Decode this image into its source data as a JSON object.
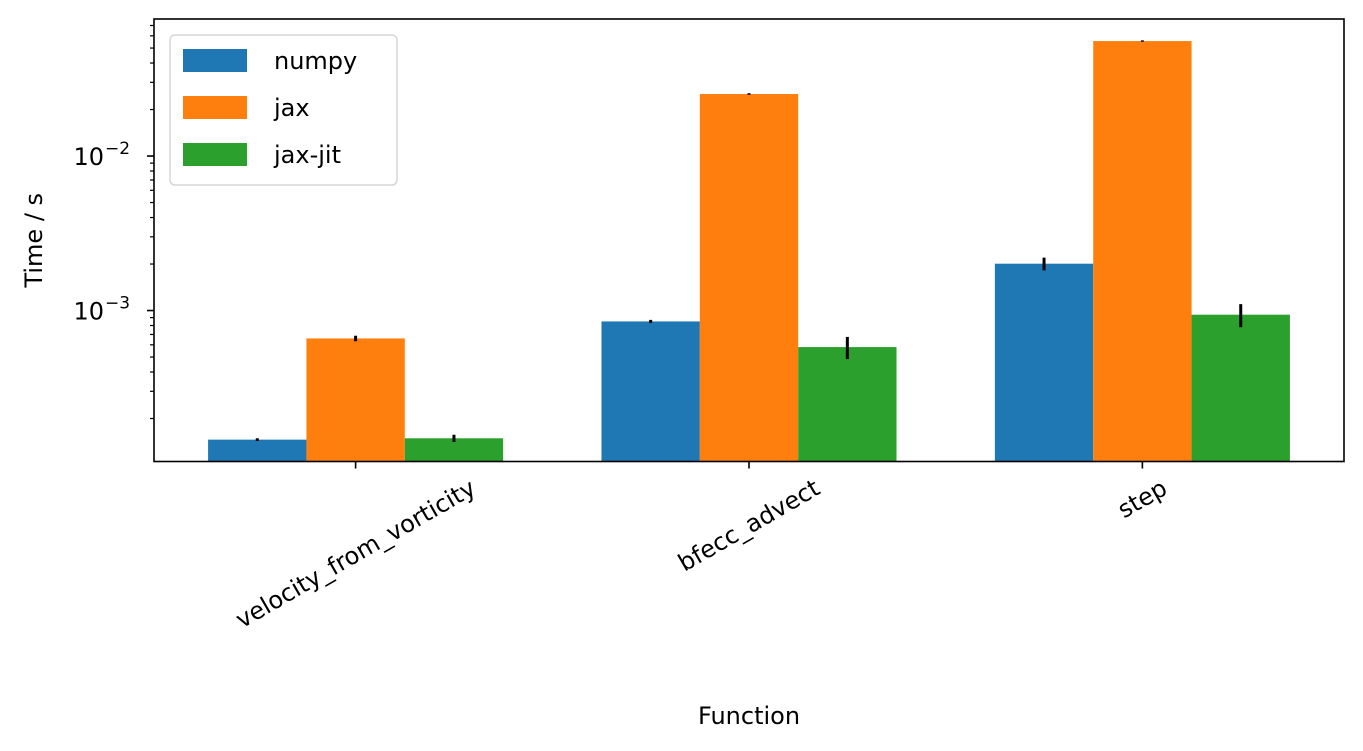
{
  "chart_data": {
    "type": "bar",
    "title": "",
    "xlabel": "Function",
    "ylabel": "Time / s",
    "yscale": "log",
    "ylim": [
      0.0001054,
      0.0771
    ],
    "xlim": [
      -0.5125,
      2.5125
    ],
    "grid": false,
    "legend_position": "top-left",
    "categories": [
      "velocity_from_vorticity",
      "bfecc_advect",
      "step"
    ],
    "y_tick_labels": [
      {
        "value": 0.01,
        "base": "10",
        "exp": "−2"
      },
      {
        "value": 0.001,
        "base": "10",
        "exp": "−3"
      }
    ],
    "bar_width": 0.25,
    "series": [
      {
        "name": "numpy",
        "color": "#1f77b4",
        "values": [
          0.000146,
          0.00085,
          0.00201
        ],
        "errors": [
          3e-06,
          2e-05,
          0.00019
        ]
      },
      {
        "name": "jax",
        "color": "#ff7f0e",
        "values": [
          0.00066,
          0.0252,
          0.0555
        ],
        "errors": [
          2.7e-05,
          0.0003,
          0.0006
        ]
      },
      {
        "name": "jax-jit",
        "color": "#2ca02c",
        "values": [
          0.000149,
          0.00058,
          0.00094
        ],
        "errors": [
          8e-06,
          9.5e-05,
          0.00016
        ]
      }
    ]
  }
}
